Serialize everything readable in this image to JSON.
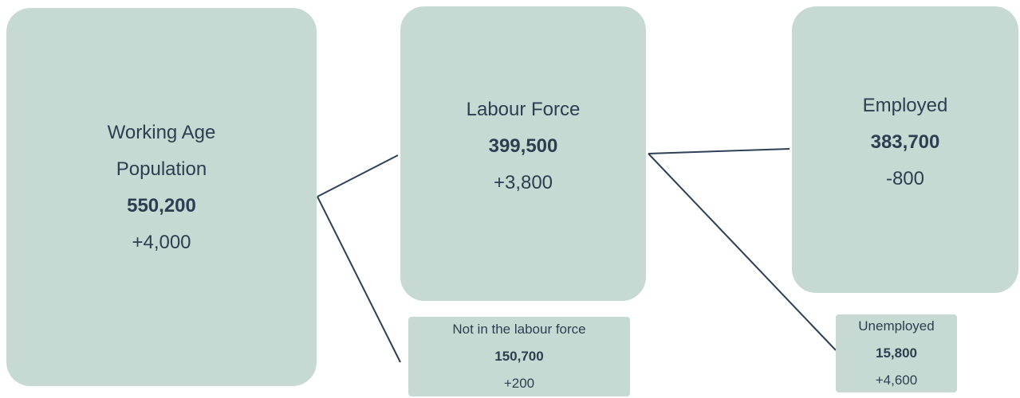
{
  "nodes": [
    {
      "label": "Working Age Population",
      "value": "550,200",
      "change": "+4,000"
    },
    {
      "label": "Labour Force",
      "value": "399,500",
      "change": "+3,800"
    },
    {
      "label": "Employed",
      "value": "383,700",
      "change": "-800"
    },
    {
      "label": "Not in the labour force",
      "value": "150,700",
      "change": "+200"
    },
    {
      "label": "Unemployed",
      "value": "15,800",
      "change": "+4,600"
    }
  ]
}
